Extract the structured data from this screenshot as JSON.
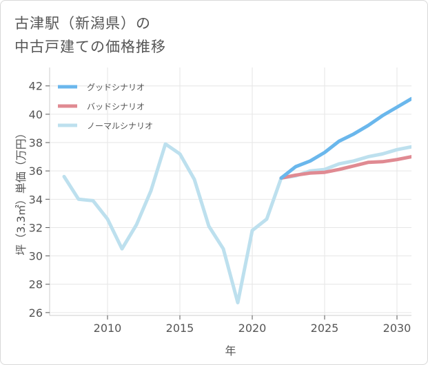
{
  "title": {
    "line1": "古津駅（新潟県）の",
    "line2": "中古戸建ての価格推移"
  },
  "chart_data": {
    "type": "line",
    "xlabel": "年",
    "ylabel": "坪（3.3㎡）単価（万円）",
    "xlim": [
      2006,
      2031
    ],
    "ylim": [
      25.8,
      43.3
    ],
    "xticks": [
      2010,
      2015,
      2020,
      2025,
      2030
    ],
    "yticks": [
      26,
      28,
      30,
      32,
      34,
      36,
      38,
      40,
      42
    ],
    "grid": true,
    "legend_position": "top-left",
    "series": [
      {
        "name": "グッドシナリオ",
        "color": "#6ab7ec",
        "x": [
          2022,
          2023,
          2024,
          2025,
          2026,
          2027,
          2028,
          2029,
          2030,
          2031
        ],
        "y": [
          35.5,
          36.3,
          36.7,
          37.3,
          38.1,
          38.6,
          39.2,
          39.9,
          40.5,
          41.1
        ]
      },
      {
        "name": "バッドシナリオ",
        "color": "#e08a92",
        "x": [
          2022,
          2023,
          2024,
          2025,
          2026,
          2027,
          2028,
          2029,
          2030,
          2031
        ],
        "y": [
          35.5,
          35.7,
          35.85,
          35.9,
          36.1,
          36.35,
          36.6,
          36.65,
          36.8,
          37.0
        ]
      },
      {
        "name": "ノーマルシナリオ",
        "color": "#bde0ee",
        "x": [
          2007,
          2008,
          2009,
          2010,
          2011,
          2012,
          2013,
          2014,
          2015,
          2016,
          2017,
          2018,
          2019,
          2020,
          2021,
          2022,
          2023,
          2024,
          2025,
          2026,
          2027,
          2028,
          2029,
          2030,
          2031
        ],
        "y": [
          35.6,
          34.0,
          33.9,
          32.6,
          30.5,
          32.2,
          34.6,
          37.9,
          37.2,
          35.4,
          32.1,
          30.5,
          26.7,
          31.8,
          32.6,
          35.5,
          35.65,
          36.0,
          36.1,
          36.5,
          36.7,
          37.0,
          37.2,
          37.5,
          37.7
        ]
      }
    ]
  }
}
